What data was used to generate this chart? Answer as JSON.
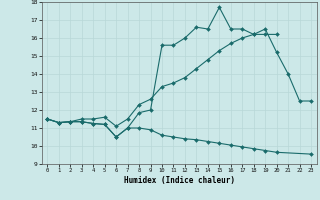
{
  "xlabel": "Humidex (Indice chaleur)",
  "bg_color": "#cce8e8",
  "line_color": "#1a6b6b",
  "grid_color": "#b8d8d8",
  "xlim": [
    -0.5,
    23.5
  ],
  "ylim": [
    9,
    18
  ],
  "xticks": [
    0,
    1,
    2,
    3,
    4,
    5,
    6,
    7,
    8,
    9,
    10,
    11,
    12,
    13,
    14,
    15,
    16,
    17,
    18,
    19,
    20,
    21,
    22,
    23
  ],
  "yticks": [
    9,
    10,
    11,
    12,
    13,
    14,
    15,
    16,
    17,
    18
  ],
  "line1_x": [
    0,
    1,
    2,
    3,
    4,
    5,
    6,
    7,
    8,
    9,
    10,
    11,
    12,
    13,
    14,
    15,
    16,
    17,
    18,
    19,
    20,
    21,
    22,
    23
  ],
  "line1_y": [
    11.5,
    11.3,
    11.35,
    11.35,
    11.25,
    11.2,
    10.5,
    11.0,
    11.85,
    12.0,
    15.6,
    15.6,
    16.0,
    16.6,
    16.5,
    17.7,
    16.5,
    16.5,
    16.2,
    16.5,
    15.2,
    14.0,
    12.5,
    12.5
  ],
  "line2_x": [
    0,
    1,
    2,
    3,
    4,
    5,
    6,
    7,
    8,
    9,
    10,
    11,
    12,
    13,
    14,
    15,
    16,
    17,
    18,
    19,
    20
  ],
  "line2_y": [
    11.5,
    11.3,
    11.35,
    11.5,
    11.5,
    11.6,
    11.1,
    11.5,
    12.3,
    12.6,
    13.3,
    13.5,
    13.8,
    14.3,
    14.8,
    15.3,
    15.7,
    16.0,
    16.2,
    16.2,
    16.2
  ],
  "line3_x": [
    0,
    1,
    2,
    3,
    4,
    5,
    6,
    7,
    8,
    9,
    10,
    11,
    12,
    13,
    14,
    15,
    16,
    17,
    18,
    19,
    20,
    23
  ],
  "line3_y": [
    11.5,
    11.3,
    11.35,
    11.35,
    11.25,
    11.2,
    10.5,
    11.0,
    11.0,
    10.9,
    10.6,
    10.5,
    10.4,
    10.35,
    10.25,
    10.15,
    10.05,
    9.95,
    9.85,
    9.75,
    9.65,
    9.55
  ]
}
